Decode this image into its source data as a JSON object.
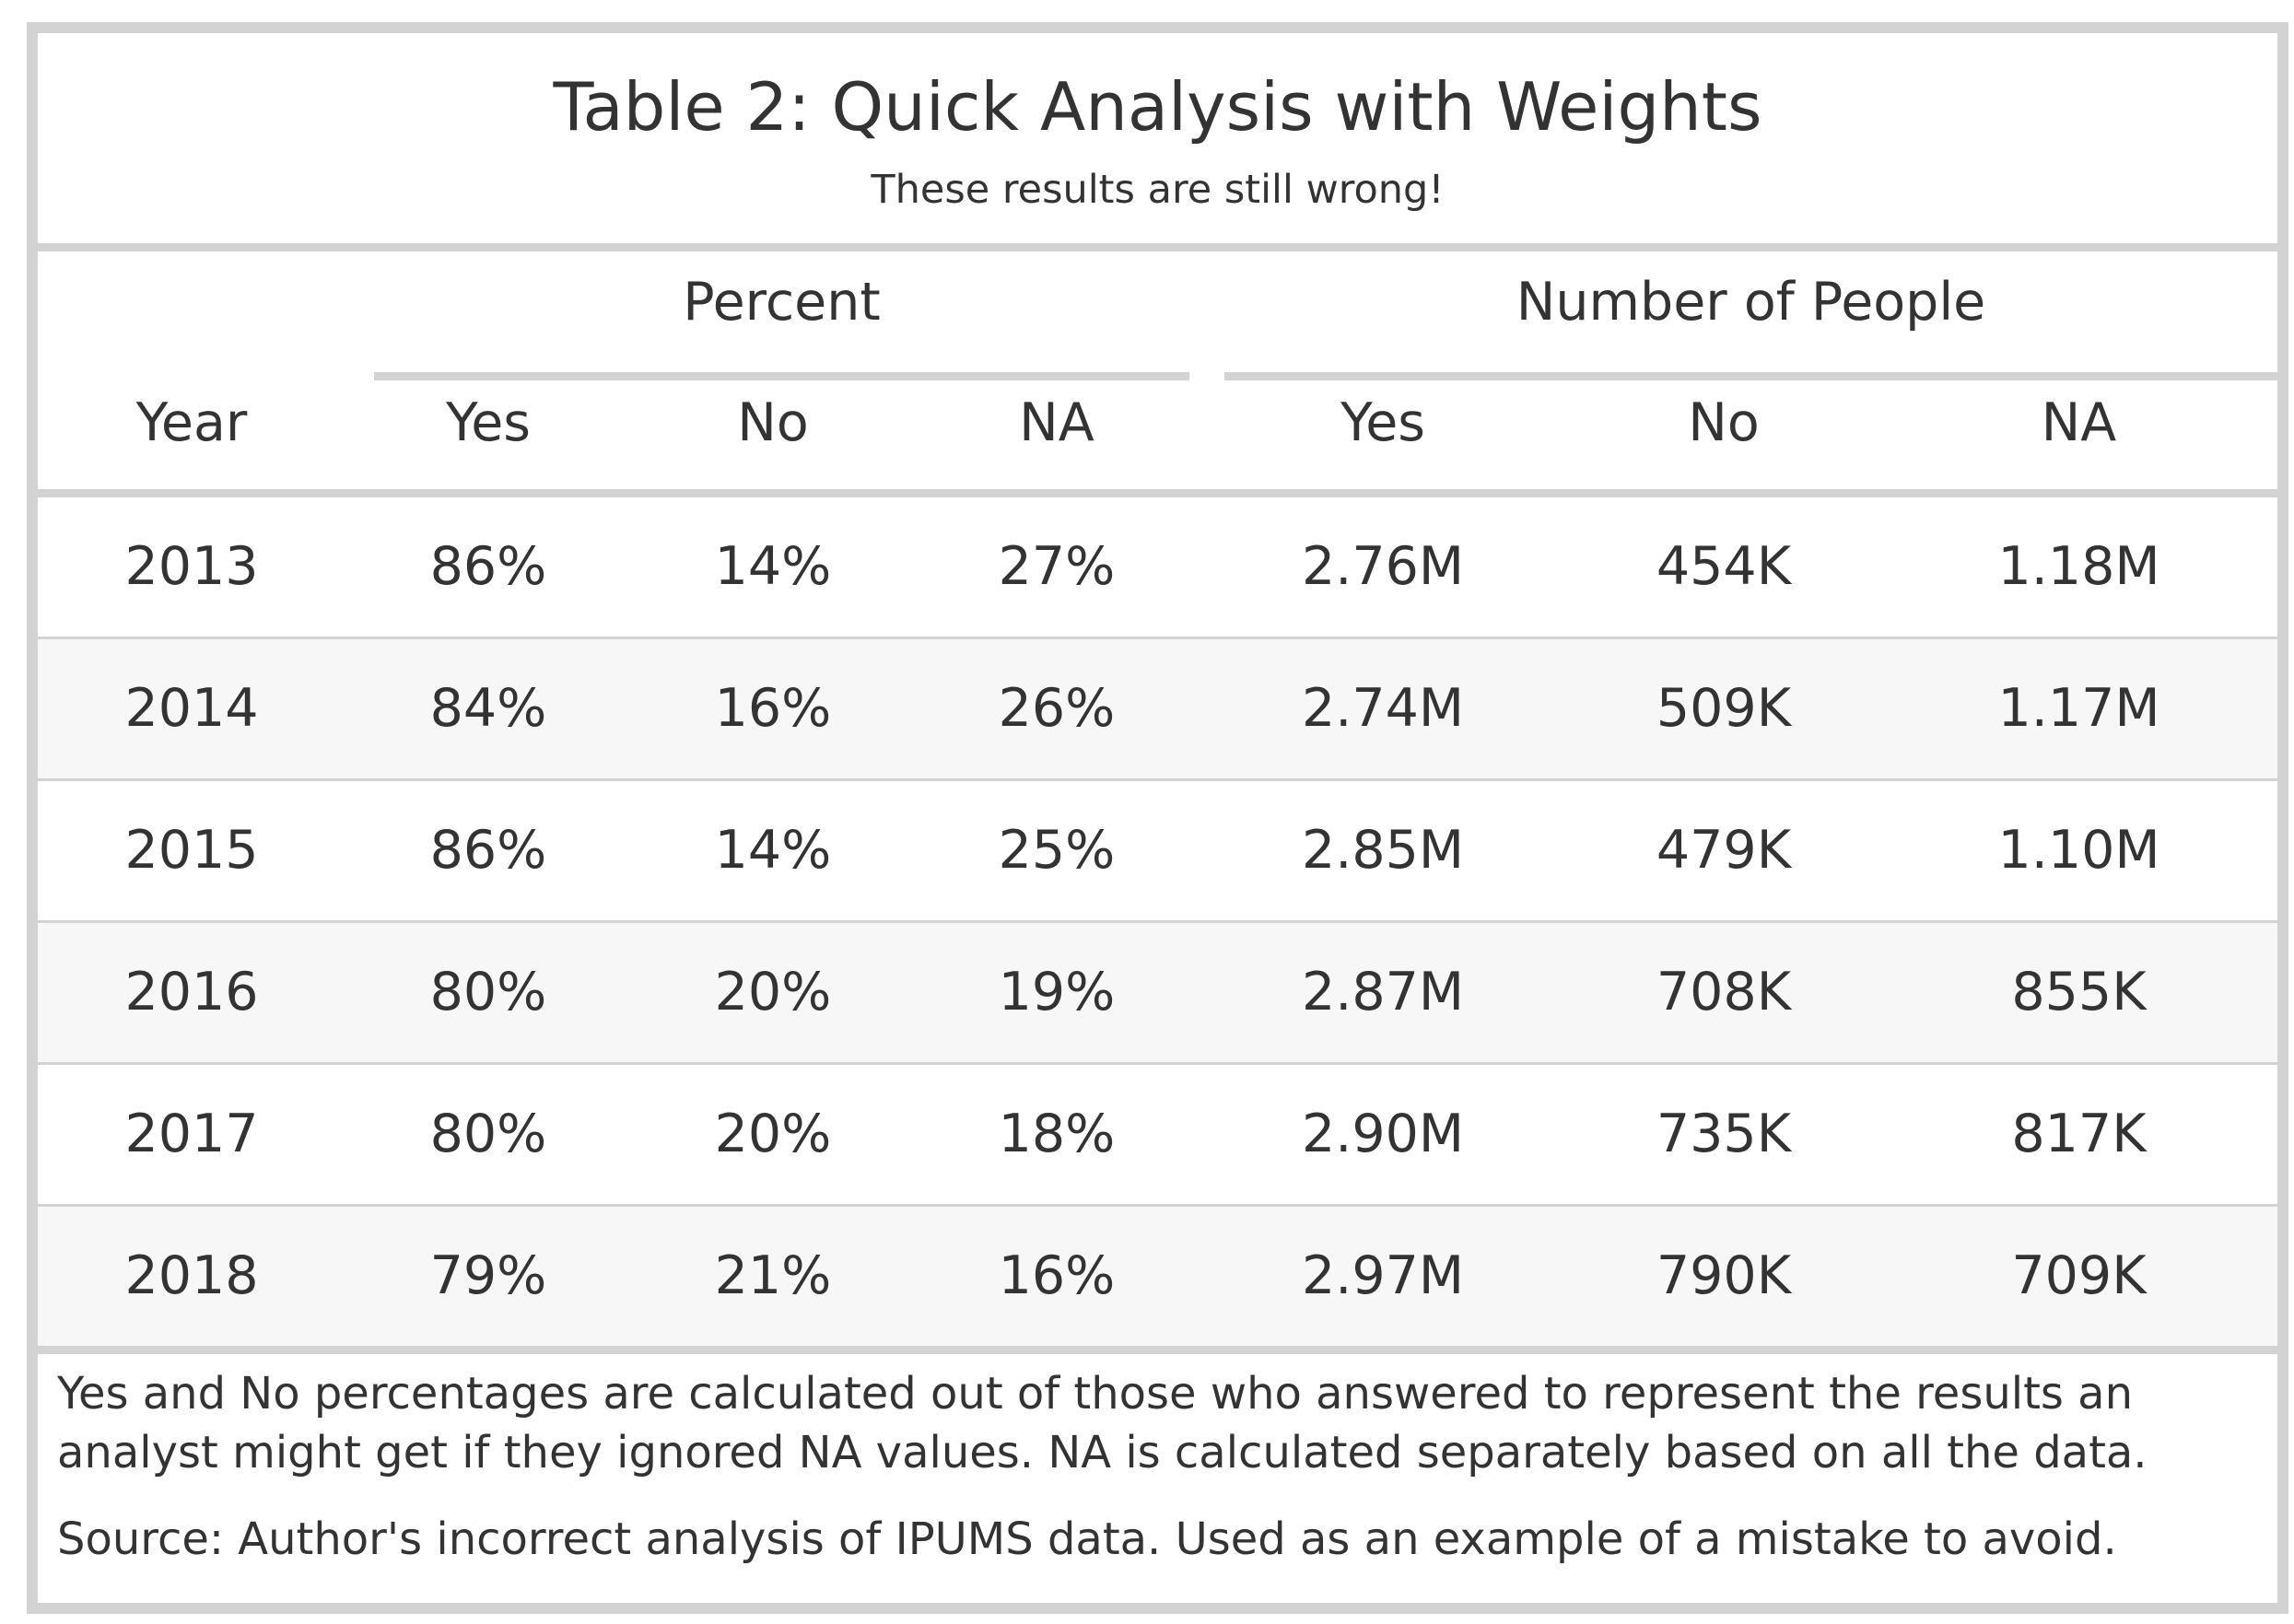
{
  "title": "Table 2: Quick Analysis with Weights",
  "subtitle": "These results are still wrong!",
  "spanners": {
    "percent": "Percent",
    "people": "Number of People"
  },
  "columns": [
    "Year",
    "Yes",
    "No",
    "NA",
    "Yes",
    "No",
    "NA"
  ],
  "rows": [
    [
      "2013",
      "86%",
      "14%",
      "27%",
      "2.76M",
      "454K",
      "1.18M"
    ],
    [
      "2014",
      "84%",
      "16%",
      "26%",
      "2.74M",
      "509K",
      "1.17M"
    ],
    [
      "2015",
      "86%",
      "14%",
      "25%",
      "2.85M",
      "479K",
      "1.10M"
    ],
    [
      "2016",
      "80%",
      "20%",
      "19%",
      "2.87M",
      "708K",
      "855K"
    ],
    [
      "2017",
      "80%",
      "20%",
      "18%",
      "2.90M",
      "735K",
      "817K"
    ],
    [
      "2018",
      "79%",
      "21%",
      "16%",
      "2.97M",
      "790K",
      "709K"
    ]
  ],
  "footnote": "Yes and No percentages are calculated out of those who answered to represent the results an analyst might get if they ignored NA values. NA is calculated separately based on all the data.",
  "source": "Source: Author's incorrect analysis of IPUMS data. Used as an example of a mistake to avoid.",
  "colors": {
    "border": "#d3d3d3",
    "stripe": "#f7f7f7",
    "text": "#333333"
  }
}
